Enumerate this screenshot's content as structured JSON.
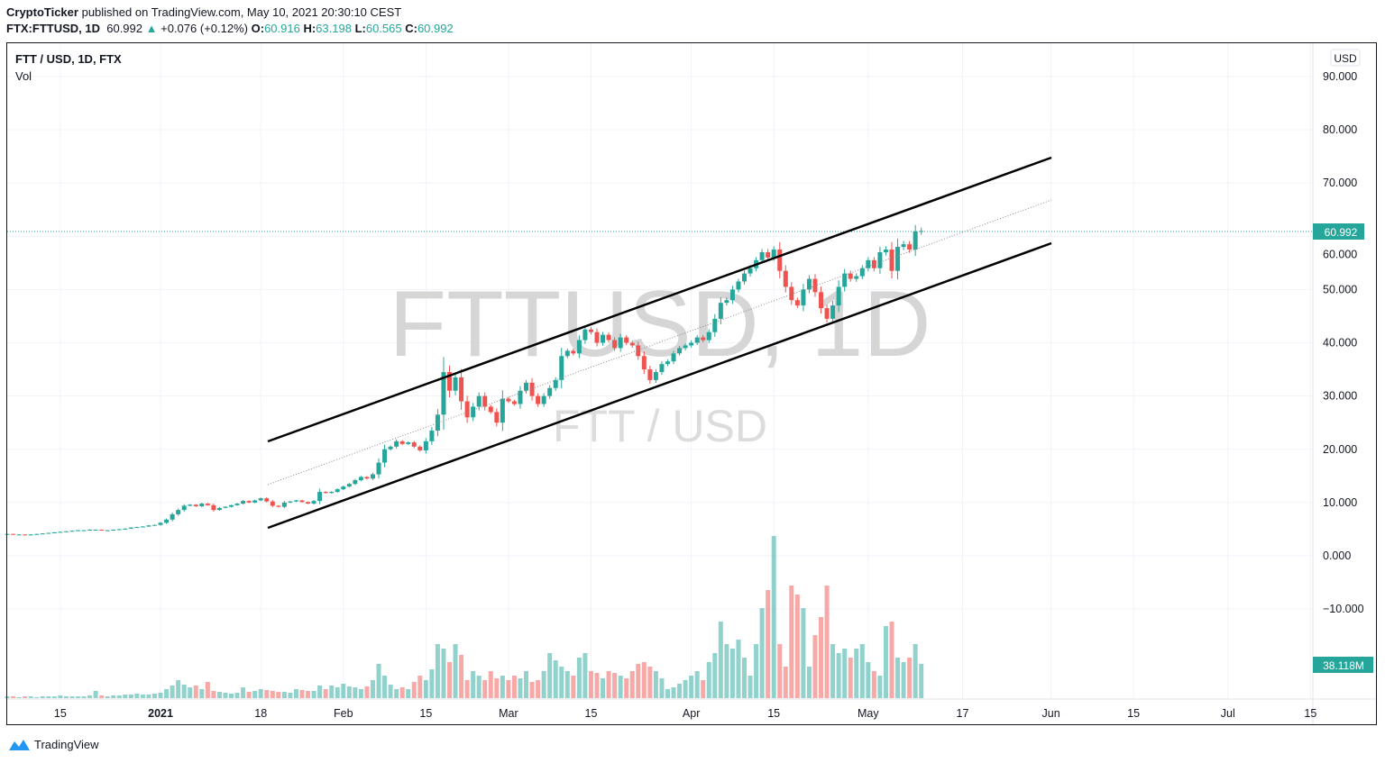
{
  "header": {
    "publisher": "CryptoTicker",
    "published_text": "published on TradingView.com, May 10, 2021 20:30:10 CEST",
    "symbol": "FTX:FTTUSD, 1D",
    "last": "60.992",
    "change": "+0.076 (+0.12%)",
    "o_label": "O:",
    "o": "60.916",
    "h_label": "H:",
    "h": "63.198",
    "l_label": "L:",
    "l": "60.565",
    "c_label": "C:",
    "c": "60.992"
  },
  "legend": {
    "title": "FTT / USD, 1D, FTX",
    "vol": "Vol"
  },
  "watermark": {
    "line1": "FTTUSD, 1D",
    "line2": "FTT / USD"
  },
  "currency": "USD",
  "footer": {
    "brand": "TradingView"
  },
  "colors": {
    "up": "#26a69a",
    "down": "#ef5350"
  },
  "chart_data": {
    "type": "candlestick",
    "start_date": "2020-12-06",
    "ylim": [
      -10,
      90
    ],
    "y_ticks": [
      "90.000",
      "80.000",
      "70.000",
      "60.000",
      "50.000",
      "40.000",
      "30.000",
      "20.000",
      "10.000",
      "0.000",
      "−10.000"
    ],
    "y_tick_values": [
      90,
      80,
      70,
      60,
      50,
      40,
      30,
      20,
      10,
      0,
      -10
    ],
    "x_ticks": [
      "15",
      "2021",
      "18",
      "Feb",
      "15",
      "Mar",
      "15",
      "Apr",
      "15",
      "May",
      "17",
      "Jun",
      "15",
      "Jul",
      "15"
    ],
    "x_tick_days": [
      9,
      26,
      43,
      57,
      71,
      85,
      99,
      116,
      130,
      146,
      162,
      177,
      191,
      207,
      221
    ],
    "last_price_label": "60.992",
    "last_volume_label": "38.118M",
    "close": [
      4.1,
      4.0,
      4.0,
      3.9,
      4.0,
      4.1,
      4.2,
      4.3,
      4.4,
      4.5,
      4.6,
      4.7,
      4.8,
      4.8,
      4.9,
      4.9,
      4.8,
      4.8,
      4.9,
      5.0,
      5.1,
      5.3,
      5.4,
      5.5,
      5.7,
      5.8,
      6.2,
      6.8,
      7.8,
      8.6,
      9.4,
      9.6,
      9.3,
      9.8,
      9.5,
      8.6,
      9.0,
      9.2,
      9.5,
      9.8,
      10.3,
      10.0,
      10.4,
      10.8,
      10.2,
      9.4,
      9.2,
      10.0,
      10.2,
      10.4,
      10.1,
      9.8,
      10.3,
      12.0,
      11.8,
      12.0,
      12.5,
      13.0,
      13.5,
      14.2,
      14.8,
      14.5,
      15.3,
      17.5,
      20.0,
      20.5,
      21.5,
      21.0,
      21.3,
      20.5,
      19.8,
      21.5,
      23.5,
      26.5,
      34.5,
      31.0,
      33.5,
      29.0,
      26.0,
      28.0,
      30.0,
      28.0,
      27.0,
      25.0,
      29.5,
      29.0,
      28.5,
      31.0,
      32.5,
      30.0,
      28.5,
      30.0,
      31.5,
      33.0,
      37.5,
      38.5,
      38.0,
      40.5,
      42.5,
      42.0,
      40.0,
      41.5,
      40.5,
      39.0,
      41.0,
      40.0,
      39.5,
      37.5,
      35.0,
      33.0,
      34.5,
      36.0,
      36.5,
      38.0,
      39.0,
      39.5,
      40.0,
      41.0,
      40.5,
      42.0,
      44.5,
      47.5,
      48.0,
      50.0,
      51.5,
      53.0,
      54.0,
      55.5,
      57.0,
      56.0,
      57.5,
      53.5,
      50.5,
      48.0,
      47.0,
      50.0,
      52.0,
      49.5,
      46.5,
      44.5,
      47.0,
      50.5,
      53.0,
      52.0,
      52.5,
      54.0,
      55.5,
      54.0,
      57.0,
      57.5,
      53.5,
      58.0,
      58.5,
      57.5,
      60.916,
      60.992
    ],
    "volume_m": [
      2,
      2,
      1,
      2,
      2,
      1,
      2,
      2,
      2,
      3,
      2,
      2,
      2,
      2,
      3,
      8,
      3,
      2,
      3,
      3,
      4,
      4,
      5,
      4,
      4,
      5,
      6,
      10,
      14,
      20,
      15,
      12,
      14,
      10,
      18,
      8,
      7,
      6,
      5,
      6,
      12,
      7,
      8,
      10,
      9,
      8,
      7,
      7,
      6,
      10,
      9,
      8,
      8,
      14,
      10,
      14,
      12,
      16,
      13,
      12,
      10,
      13,
      20,
      38,
      25,
      15,
      10,
      12,
      10,
      18,
      25,
      20,
      32,
      60,
      55,
      40,
      60,
      48,
      20,
      30,
      25,
      20,
      30,
      22,
      25,
      20,
      25,
      22,
      30,
      18,
      20,
      30,
      50,
      42,
      35,
      30,
      25,
      45,
      50,
      30,
      28,
      22,
      30,
      28,
      25,
      22,
      30,
      38,
      40,
      35,
      30,
      22,
      10,
      12,
      16,
      20,
      25,
      30,
      20,
      40,
      50,
      85,
      60,
      55,
      65,
      45,
      25,
      60,
      100,
      120,
      180,
      60,
      35,
      125,
      115,
      100,
      35,
      70,
      90,
      125,
      60,
      50,
      55,
      45,
      55,
      60,
      40,
      30,
      25,
      80,
      85,
      45,
      40,
      45,
      60,
      38.118
    ]
  }
}
